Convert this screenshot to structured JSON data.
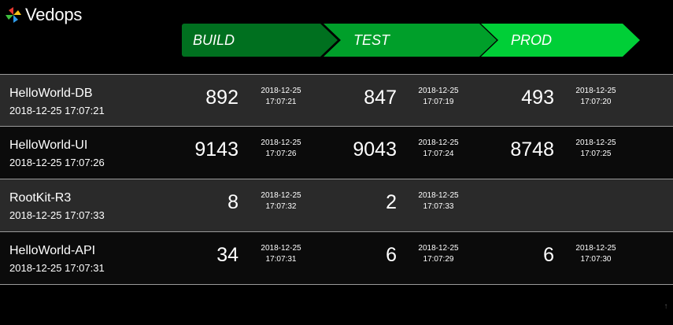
{
  "brand": {
    "name": "Vedops",
    "icon": "pinwheel-logo-icon"
  },
  "stages": [
    {
      "label": "BUILD",
      "color": "#00701f"
    },
    {
      "label": "TEST",
      "color": "#009f2a"
    },
    {
      "label": "PROD",
      "color": "#00cf37"
    }
  ],
  "rows": [
    {
      "name": "HelloWorld-DB",
      "time": "2018-12-25 17:07:21",
      "build": {
        "count": "892",
        "date": "2018-12-25",
        "clock": "17:07:21"
      },
      "test": {
        "count": "847",
        "date": "2018-12-25",
        "clock": "17:07:19"
      },
      "prod": {
        "count": "493",
        "date": "2018-12-25",
        "clock": "17:07:20"
      }
    },
    {
      "name": "HelloWorld-UI",
      "time": "2018-12-25 17:07:26",
      "build": {
        "count": "9143",
        "date": "2018-12-25",
        "clock": "17:07:26"
      },
      "test": {
        "count": "9043",
        "date": "2018-12-25",
        "clock": "17:07:24"
      },
      "prod": {
        "count": "8748",
        "date": "2018-12-25",
        "clock": "17:07:25"
      }
    },
    {
      "name": "RootKit-R3",
      "time": "2018-12-25 17:07:33",
      "build": {
        "count": "8",
        "date": "2018-12-25",
        "clock": "17:07:32"
      },
      "test": {
        "count": "2",
        "date": "2018-12-25",
        "clock": "17:07:33"
      },
      "prod": {
        "count": "",
        "date": "",
        "clock": ""
      }
    },
    {
      "name": "HelloWorld-API",
      "time": "2018-12-25 17:07:31",
      "build": {
        "count": "34",
        "date": "2018-12-25",
        "clock": "17:07:31"
      },
      "test": {
        "count": "6",
        "date": "2018-12-25",
        "clock": "17:07:29"
      },
      "prod": {
        "count": "6",
        "date": "2018-12-25",
        "clock": "17:07:30"
      }
    }
  ],
  "scroll": {
    "icon": "arrow-up-icon",
    "glyph": "↑"
  }
}
